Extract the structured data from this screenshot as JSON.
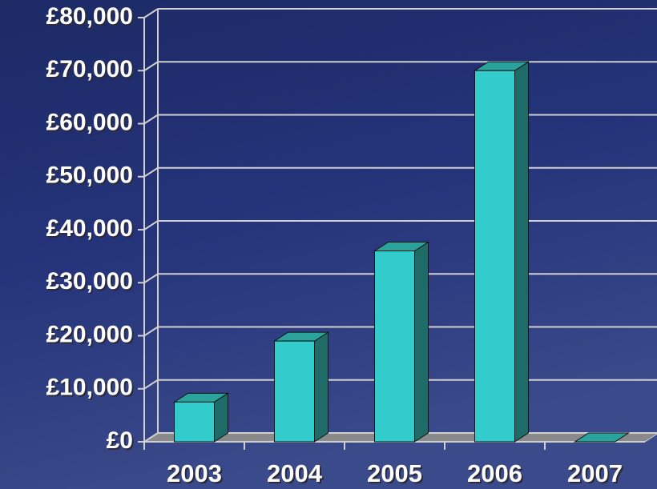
{
  "chart_data": {
    "type": "bar3d",
    "categories": [
      "2003",
      "2004",
      "2005",
      "2006",
      "2007"
    ],
    "values": [
      7500,
      19000,
      36000,
      70000,
      0
    ],
    "color": "#33cccc",
    "ylim": [
      0,
      80000
    ],
    "yticks": [
      {
        "value": 0,
        "label": "£0"
      },
      {
        "value": 10000,
        "label": "£10,000"
      },
      {
        "value": 20000,
        "label": "£20,000"
      },
      {
        "value": 30000,
        "label": "£30,000"
      },
      {
        "value": 40000,
        "label": "£40,000"
      },
      {
        "value": 50000,
        "label": "£50,000"
      },
      {
        "value": 60000,
        "label": "£60,000"
      },
      {
        "value": 70000,
        "label": "£70,000"
      },
      {
        "value": 80000,
        "label": "£80,000"
      }
    ],
    "grid": true
  }
}
